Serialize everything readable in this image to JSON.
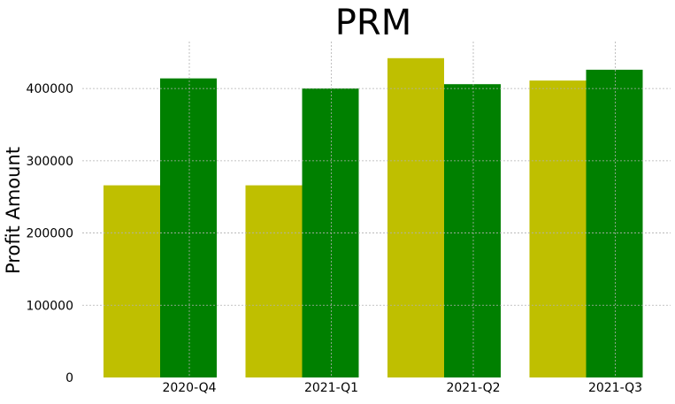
{
  "chart_data": {
    "type": "bar",
    "title": "PRM",
    "xlabel": "",
    "ylabel": "Profit Amount",
    "categories": [
      "2020-Q4",
      "2021-Q1",
      "2021-Q2",
      "2021-Q3"
    ],
    "series": [
      {
        "color": "#bfbf00",
        "values": [
          266000,
          266000,
          442000,
          411000
        ]
      },
      {
        "color": "#008000",
        "values": [
          414000,
          400000,
          406000,
          426000
        ]
      }
    ],
    "ylim": [
      0,
      465000
    ],
    "yticks": [
      0,
      100000,
      200000,
      300000,
      400000
    ],
    "ytick_labels": [
      "0",
      "100000",
      "200000",
      "300000",
      "400000"
    ],
    "grid": true,
    "legend": "none"
  }
}
